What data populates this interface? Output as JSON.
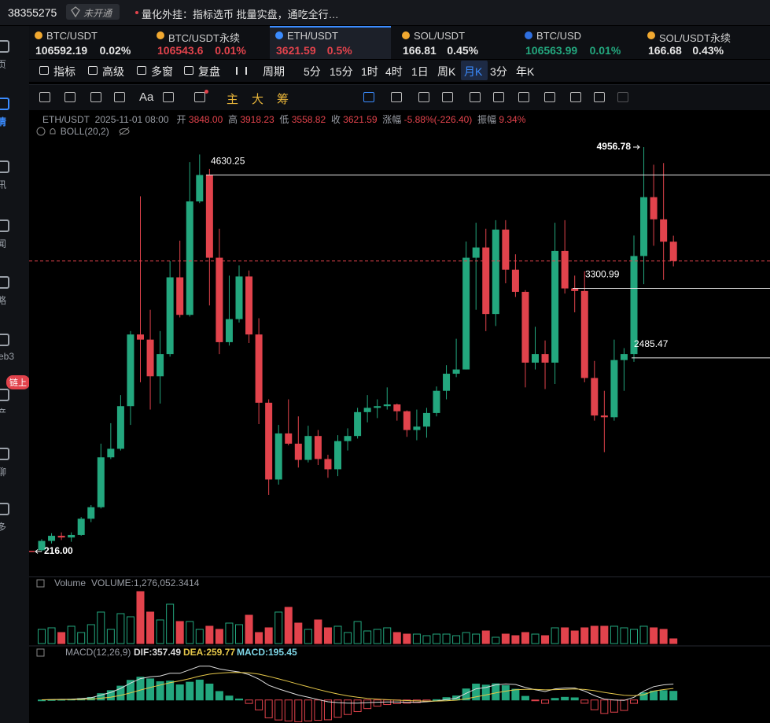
{
  "header": {
    "account": "38355275",
    "badge": "未开通",
    "notice": "量化外挂：指标选币 批量实盘，通吃全行…"
  },
  "sidebar": {
    "items": [
      "页",
      "情",
      "讯",
      "闻",
      "略",
      "eb3",
      "产",
      "聊",
      "多"
    ],
    "badge": "链上",
    "active": 1
  },
  "tickers": [
    {
      "symbol": "BTC/USDT",
      "price": "106592.19",
      "change": "0.02%",
      "color": "#e6e6e6"
    },
    {
      "symbol": "BTC/USDT永续",
      "price": "106543.6",
      "change": "0.01%",
      "color": "#e2434c"
    },
    {
      "symbol": "ETH/USDT",
      "price": "3621.59",
      "change": "0.5%",
      "color": "#e2434c"
    },
    {
      "symbol": "SOL/USDT",
      "price": "166.81",
      "change": "0.45%",
      "color": "#e6e6e6"
    },
    {
      "symbol": "BTC/USD",
      "price": "106563.99",
      "change": "0.01%",
      "color": "#23a77e"
    },
    {
      "symbol": "SOL/USDT永续",
      "price": "166.68",
      "change": "0.43%",
      "color": "#e6e6e6"
    }
  ],
  "active_ticker": 2,
  "toolbar": {
    "items": [
      "指标",
      "高级",
      "多窗",
      "复盘",
      "周期",
      "5分",
      "15分",
      "1时",
      "4时",
      "1日",
      "周K",
      "月K",
      "3分",
      "年K"
    ],
    "active": 11
  },
  "drawing_tools": [
    "Aa",
    "主",
    "大",
    "筹"
  ],
  "info": {
    "symbol": "ETH/USDT",
    "time": "2025-11-01 08:00",
    "fields": [
      {
        "label": "开",
        "value": "3848.00"
      },
      {
        "label": "高",
        "value": "3918.23"
      },
      {
        "label": "低",
        "value": "3558.82"
      },
      {
        "label": "收",
        "value": "3621.59"
      },
      {
        "label": "涨幅",
        "value": "-5.88%(-226.40)"
      },
      {
        "label": "振幅",
        "value": "9.34%"
      }
    ]
  },
  "chart_data": [
    {
      "type": "candlestick",
      "indicator": "BOLL(20,2)",
      "up_color": "#23a77e",
      "down_color": "#e2434c",
      "ylim": [
        -70,
        5390
      ],
      "open": [
        231,
        340,
        400,
        380,
        410,
        600,
        735,
        1320,
        1420,
        1920,
        2760,
        2700,
        2270,
        2530,
        3430,
        2990,
        4320,
        4630,
        3660,
        2670,
        2940,
        3440,
        2760,
        1960,
        1060,
        1600,
        1480,
        1290,
        1570,
        1300,
        1180,
        1510,
        1570,
        1850,
        1900,
        1920,
        1940,
        1860,
        1640,
        1680,
        1840,
        2100,
        2300,
        2350,
        3660,
        3780,
        3000,
        3990,
        3520,
        3260,
        2430,
        2530,
        2430,
        3740,
        3300,
        3270,
        2250,
        1810,
        1790,
        2460,
        2530,
        3680,
        4370,
        4110,
        3848
      ],
      "high": [
        360,
        430,
        440,
        440,
        620,
        760,
        1480,
        1720,
        2050,
        2800,
        4380,
        3050,
        2800,
        3620,
        3860,
        4780,
        4870,
        4700,
        4000,
        3450,
        3570,
        3510,
        2950,
        2000,
        1700,
        2000,
        1800,
        1690,
        1640,
        1350,
        1580,
        1660,
        1900,
        2050,
        2000,
        2140,
        1950,
        1870,
        1880,
        1900,
        2150,
        2400,
        2710,
        3850,
        4070,
        4000,
        4100,
        4100,
        3700,
        3280,
        2850,
        2690,
        4070,
        4100,
        3450,
        3500,
        2450,
        2100,
        2700,
        2600,
        3920,
        4956.78,
        4750,
        4770,
        3918.23
      ],
      "low": [
        216,
        310,
        350,
        330,
        400,
        560,
        720,
        1300,
        1400,
        1700,
        2200,
        1880,
        1950,
        2500,
        2960,
        2970,
        4300,
        3100,
        2530,
        2630,
        2900,
        2660,
        1710,
        880,
        1000,
        1460,
        1200,
        1260,
        1230,
        1080,
        1100,
        1400,
        1540,
        1730,
        1780,
        1880,
        1750,
        1560,
        1520,
        1550,
        1800,
        2000,
        2260,
        2350,
        3050,
        2800,
        2860,
        3360,
        3200,
        2140,
        2350,
        2120,
        2180,
        3240,
        3020,
        2200,
        1750,
        1380,
        1750,
        2100,
        2440,
        3350,
        3800,
        3400,
        3558.82
      ],
      "close": [
        340,
        400,
        380,
        410,
        600,
        735,
        1320,
        1420,
        1920,
        2760,
        2700,
        2270,
        2530,
        3430,
        2990,
        4320,
        4630,
        3660,
        2670,
        2940,
        3440,
        2760,
        1960,
        1060,
        1600,
        1480,
        1290,
        1570,
        1300,
        1180,
        1510,
        1570,
        1850,
        1900,
        1920,
        1940,
        1860,
        1640,
        1680,
        1840,
        2100,
        2300,
        2350,
        3660,
        3780,
        3000,
        3990,
        3520,
        3260,
        2430,
        2530,
        2430,
        3740,
        3300,
        3270,
        2250,
        1810,
        1790,
        2460,
        2530,
        3680,
        4370,
        4110,
        3848,
        3621.59
      ],
      "annotations": [
        {
          "value": 4630.25,
          "label": "4630.25"
        },
        {
          "value": 4956.78,
          "label": "4956.78"
        },
        {
          "value": 3300.99,
          "label": "3300.99"
        },
        {
          "value": 2485.47,
          "label": "2485.47"
        },
        {
          "value": 216,
          "label": "216.00"
        }
      ]
    },
    {
      "type": "bar",
      "title": "Volume",
      "legend": "VOLUME:1,276,052.3414",
      "ylim": [
        0,
        17650000
      ],
      "values": [
        3829000,
        4254000,
        2978000,
        4679000,
        2978000,
        5105000,
        8508000,
        3829000,
        8083000,
        7232000,
        14038000,
        8508000,
        6381000,
        10635000,
        5956000,
        5956000,
        3829000,
        4679000,
        3829000,
        5530000,
        5105000,
        7657000,
        2978000,
        4254000,
        8508000,
        9784000,
        5530000,
        3829000,
        6381000,
        4254000,
        4679000,
        2978000,
        5956000,
        3403000,
        3829000,
        4254000,
        2978000,
        2552000,
        2552000,
        2127000,
        2552000,
        2552000,
        2127000,
        2978000,
        2552000,
        3403000,
        1702000,
        2552000,
        2127000,
        2978000,
        2552000,
        2127000,
        4254000,
        4254000,
        3403000,
        4254000,
        4679000,
        4679000,
        4679000,
        4254000,
        3829000,
        4679000,
        4254000,
        3829000,
        1276052.3414
      ]
    },
    {
      "type": "macd",
      "title": "MACD(12,26,9)",
      "ylim": [
        -500,
        880
      ],
      "series": [
        {
          "label": "DIF:357.49",
          "color": "#dcdcdc",
          "values": [
            5,
            10,
            14,
            18,
            30,
            50,
            110,
            170,
            260,
            380,
            480,
            520,
            540,
            600,
            600,
            680,
            760,
            760,
            700,
            660,
            630,
            570,
            470,
            330,
            250,
            180,
            110,
            60,
            10,
            -40,
            -60,
            -70,
            -70,
            -60,
            -50,
            -45,
            -45,
            -50,
            -50,
            -40,
            -20,
            10,
            40,
            150,
            250,
            280,
            340,
            360,
            350,
            280,
            230,
            190,
            250,
            270,
            270,
            200,
            100,
            20,
            0,
            -10,
            60,
            200,
            300,
            340,
            357.49
          ]
        },
        {
          "label": "DEA:259.77",
          "color": "#e6c84a",
          "values": [
            5,
            6,
            7.6,
            9.7,
            13.8,
            21,
            38.8,
            65,
            104,
            159.2,
            223.4,
            282.7,
            334.2,
            387.4,
            429.9,
            479.9,
            535.9,
            580.7,
            604.6,
            615.7,
            618.6,
            608.9,
            581.1,
            530.9,
            474.7,
            415.8,
            354.6,
            295.7,
            238.6,
            182.9,
            134.3,
            93.4,
            60.7,
            36.6,
            19.3,
            6.4,
            -3.9,
            -13.1,
            -20.5,
            -24.4,
            -23.5,
            -16.8,
            -5.4,
            25.7,
            70.6,
            112.5,
            158,
            198.4,
            228.7,
            239,
            237.2,
            227.8,
            232.2,
            239.8,
            245.8,
            236.6,
            209.3,
            171.4,
            137.1,
            107.7,
            98.2,
            118.6,
            200,
            235,
            259.77
          ]
        },
        {
          "label": "MACD:195.45",
          "color": "#7fd8e8",
          "up_color": "#23a77e",
          "down_color": "#e2434c",
          "values": [
            0,
            8,
            12.8,
            16.6,
            32.4,
            58,
            142.4,
            210,
            312,
            441.6,
            513.2,
            474.6,
            411.6,
            425.2,
            340.2,
            400.2,
            448.2,
            358.6,
            190.8,
            88.6,
            22.8,
            -77.8,
            -222.2,
            -401.8,
            -449.4,
            -471.6,
            -489.2,
            -471.4,
            -457.2,
            -445.8,
            -388.6,
            -326.8,
            -261.4,
            -193.2,
            -138.6,
            -102.8,
            -82.2,
            -73.8,
            -59,
            -31.2,
            7,
            53.6,
            90.8,
            248.6,
            358.8,
            335,
            364,
            323.2,
            242.6,
            82,
            -14.4,
            -75.6,
            35.6,
            60.4,
            48.4,
            -73.2,
            -218.6,
            -302.8,
            -274.2,
            -235.4,
            -76.4,
            162.8,
            200,
            210,
            195.45
          ]
        }
      ]
    }
  ]
}
